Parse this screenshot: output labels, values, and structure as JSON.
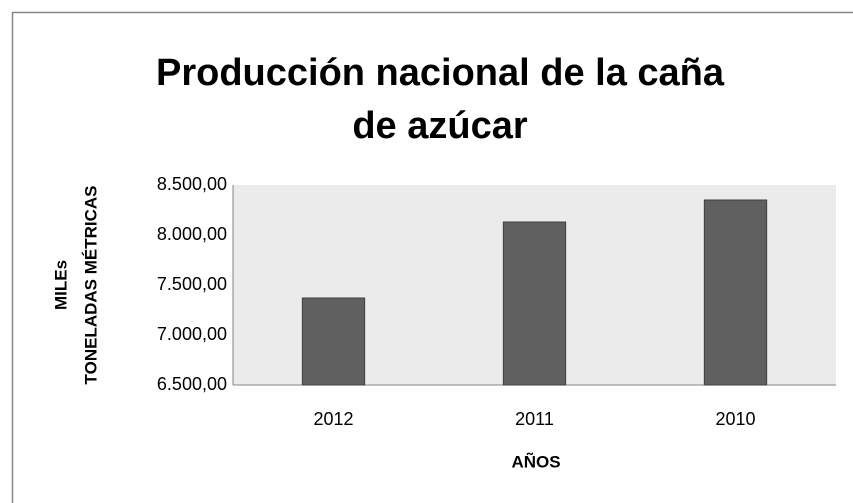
{
  "chart_data": {
    "type": "bar",
    "title": [
      "Producción nacional de la caña",
      "de azúcar"
    ],
    "y_label": [
      "MILEs",
      "TONELADAS MÉTRICAS"
    ],
    "x_label": "AÑOS",
    "categories": [
      "2012",
      "2011",
      "2010"
    ],
    "values": [
      7370,
      8130,
      8350
    ],
    "color": "#606060",
    "plot_background": "#ebebeb",
    "ylim": [
      6500,
      8500
    ],
    "yticks": [
      {
        "value": 6500,
        "label": "6.500,00"
      },
      {
        "value": 7000,
        "label": "7.000,00"
      },
      {
        "value": 7500,
        "label": "7.500,00"
      },
      {
        "value": 8000,
        "label": "8.000,00"
      },
      {
        "value": 8500,
        "label": "8.500,00"
      }
    ],
    "grid": false
  }
}
